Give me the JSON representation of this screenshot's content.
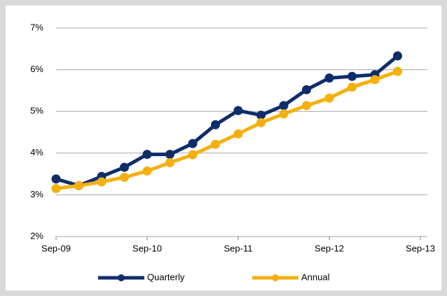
{
  "chart_data": {
    "type": "line",
    "x": [
      "2009-09",
      "2009-12",
      "2010-03",
      "2010-06",
      "2010-09",
      "2010-12",
      "2011-03",
      "2011-06",
      "2011-09",
      "2011-12",
      "2012-03",
      "2012-06",
      "2012-09",
      "2012-12",
      "2013-03",
      "2013-06"
    ],
    "series": [
      {
        "name": "Quarterly",
        "color": "#0f2d69",
        "values": [
          3.38,
          3.22,
          3.44,
          3.66,
          3.97,
          3.97,
          4.23,
          4.68,
          5.02,
          4.91,
          5.14,
          5.52,
          5.8,
          5.84,
          5.88,
          6.33
        ]
      },
      {
        "name": "Annual",
        "color": "#f5b00f",
        "values": [
          3.15,
          3.22,
          3.31,
          3.42,
          3.57,
          3.77,
          3.96,
          4.21,
          4.46,
          4.73,
          4.94,
          5.14,
          5.32,
          5.58,
          5.76,
          5.96
        ]
      }
    ],
    "xlim": [
      "2009-09",
      "2013-09"
    ],
    "xticks": [
      {
        "value": "2009-09",
        "label": "Sep-09"
      },
      {
        "value": "2010-09",
        "label": "Sep-10"
      },
      {
        "value": "2011-09",
        "label": "Sep-11"
      },
      {
        "value": "2012-09",
        "label": "Sep-12"
      },
      {
        "value": "2013-09",
        "label": "Sep-13"
      }
    ],
    "ylim": [
      2,
      7
    ],
    "yticks": [
      {
        "value": 2,
        "label": "2%"
      },
      {
        "value": 3,
        "label": "3%"
      },
      {
        "value": 4,
        "label": "4%"
      },
      {
        "value": 5,
        "label": "5%"
      },
      {
        "value": 6,
        "label": "6%"
      },
      {
        "value": 7,
        "label": "7%"
      }
    ],
    "grid": true,
    "legend": "bottom"
  }
}
